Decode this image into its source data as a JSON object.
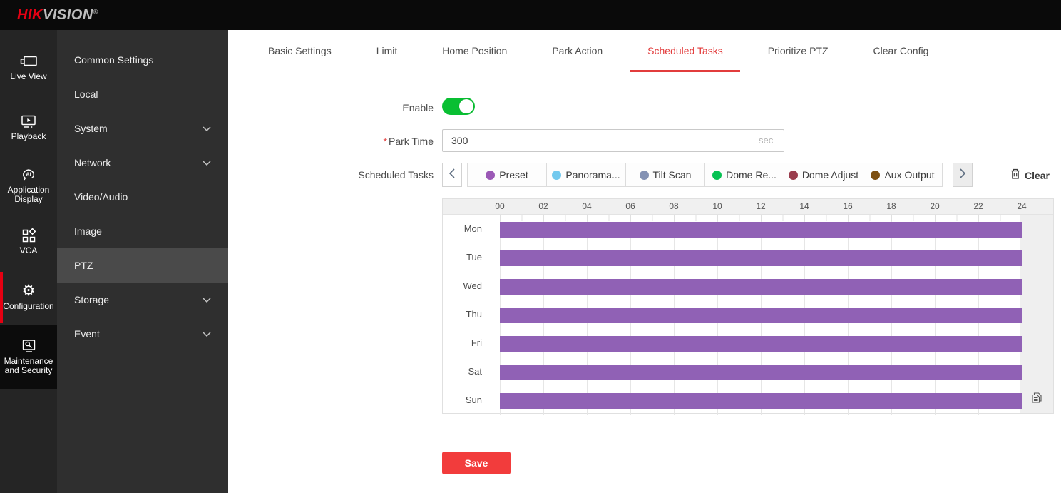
{
  "brand": {
    "hik": "HIK",
    "vision": "VISION",
    "reg": "®"
  },
  "sidebar": {
    "items": [
      {
        "label": "Live View",
        "icon": "live-view-icon",
        "active": false
      },
      {
        "label": "Playback",
        "icon": "playback-icon",
        "active": false
      },
      {
        "label": "Application Display",
        "icon": "application-display-icon",
        "active": false
      },
      {
        "label": "VCA",
        "icon": "vca-icon",
        "active": false
      },
      {
        "label": "Configuration",
        "icon": "configuration-icon",
        "active": true
      },
      {
        "label": "Maintenance and Security",
        "icon": "maintenance-icon",
        "active": false
      }
    ]
  },
  "subnav": {
    "items": [
      {
        "label": "Common Settings",
        "expandable": false,
        "active": false
      },
      {
        "label": "Local",
        "expandable": false,
        "active": false
      },
      {
        "label": "System",
        "expandable": true,
        "active": false
      },
      {
        "label": "Network",
        "expandable": true,
        "active": false
      },
      {
        "label": "Video/Audio",
        "expandable": false,
        "active": false
      },
      {
        "label": "Image",
        "expandable": false,
        "active": false
      },
      {
        "label": "PTZ",
        "expandable": false,
        "active": true
      },
      {
        "label": "Storage",
        "expandable": true,
        "active": false
      },
      {
        "label": "Event",
        "expandable": true,
        "active": false
      }
    ]
  },
  "tabs": {
    "items": [
      {
        "label": "Basic Settings",
        "active": false
      },
      {
        "label": "Limit",
        "active": false
      },
      {
        "label": "Home Position",
        "active": false
      },
      {
        "label": "Park Action",
        "active": false
      },
      {
        "label": "Scheduled Tasks",
        "active": true
      },
      {
        "label": "Prioritize PTZ",
        "active": false
      },
      {
        "label": "Clear Config",
        "active": false
      }
    ]
  },
  "form": {
    "enable_label": "Enable",
    "enable_on": true,
    "park_time_required_mark": "*",
    "park_time_label": "Park Time",
    "park_time_value": "300",
    "park_time_unit": "sec",
    "scheduled_tasks_label": "Scheduled Tasks",
    "task_types": [
      {
        "label": "Preset",
        "color": "#9b59b6"
      },
      {
        "label": "Panorama...",
        "color": "#73c9ee"
      },
      {
        "label": "Tilt Scan",
        "color": "#8492b4"
      },
      {
        "label": "Dome Re...",
        "color": "#06c253"
      },
      {
        "label": "Dome Adjust",
        "color": "#9a3d4d"
      },
      {
        "label": "Aux Output",
        "color": "#7d4f10"
      }
    ],
    "clear_label": "Clear",
    "save_label": "Save"
  },
  "schedule": {
    "hour_labels": [
      "00",
      "02",
      "04",
      "06",
      "08",
      "10",
      "12",
      "14",
      "16",
      "18",
      "20",
      "22",
      "24"
    ],
    "hours_range": [
      0,
      24
    ],
    "bar_color": "#9061b5",
    "rows": [
      {
        "day": "Mon",
        "segments": [
          {
            "start": 0,
            "end": 24
          }
        ]
      },
      {
        "day": "Tue",
        "segments": [
          {
            "start": 0,
            "end": 24
          }
        ]
      },
      {
        "day": "Wed",
        "segments": [
          {
            "start": 0,
            "end": 24
          }
        ]
      },
      {
        "day": "Thu",
        "segments": [
          {
            "start": 0,
            "end": 24
          }
        ]
      },
      {
        "day": "Fri",
        "segments": [
          {
            "start": 0,
            "end": 24
          }
        ]
      },
      {
        "day": "Sat",
        "segments": [
          {
            "start": 0,
            "end": 24
          }
        ]
      },
      {
        "day": "Sun",
        "segments": [
          {
            "start": 0,
            "end": 24
          }
        ]
      }
    ]
  }
}
